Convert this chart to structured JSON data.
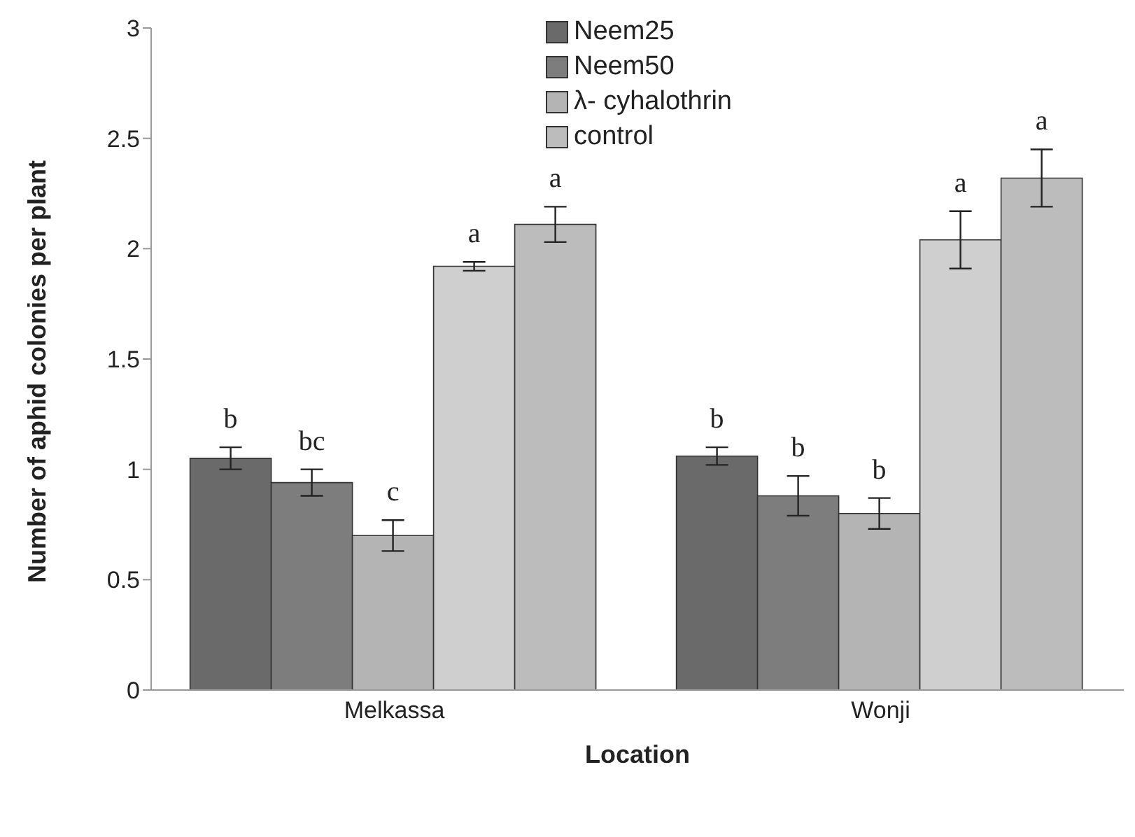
{
  "chart_data": {
    "type": "bar",
    "xlabel": "Location",
    "ylabel": "Number of aphid colonies per plant",
    "categories": [
      "Melkassa",
      "Wonji"
    ],
    "series": [
      {
        "name": "Neem25",
        "color": "#6a6a6a",
        "values": [
          1.05,
          1.06
        ],
        "errors": [
          0.05,
          0.04
        ],
        "value_labels": [
          "b",
          "b"
        ]
      },
      {
        "name": "Neem50",
        "color": "#7d7d7d",
        "values": [
          0.94,
          0.88
        ],
        "errors": [
          0.06,
          0.09
        ],
        "value_labels": [
          "bc",
          "b"
        ]
      },
      {
        "name": "λ- cyhalothrin",
        "color": "#b4b4b4",
        "values": [
          0.7,
          0.8
        ],
        "errors": [
          0.07,
          0.07
        ],
        "value_labels": [
          "c",
          "b"
        ]
      },
      {
        "color": "#cfcfcf",
        "values": [
          1.92,
          2.04
        ],
        "errors": [
          0.02,
          0.13
        ],
        "value_labels": [
          "a",
          "a"
        ]
      },
      {
        "name": "control",
        "color": "#bcbcbc",
        "values": [
          2.11,
          2.32
        ],
        "errors": [
          0.08,
          0.13
        ],
        "value_labels": [
          "a",
          "a"
        ]
      }
    ],
    "ylim": [
      0,
      3
    ],
    "yticks": [
      0,
      0.5,
      1,
      1.5,
      2,
      2.5,
      3
    ],
    "grid": false,
    "legend": "top right"
  }
}
